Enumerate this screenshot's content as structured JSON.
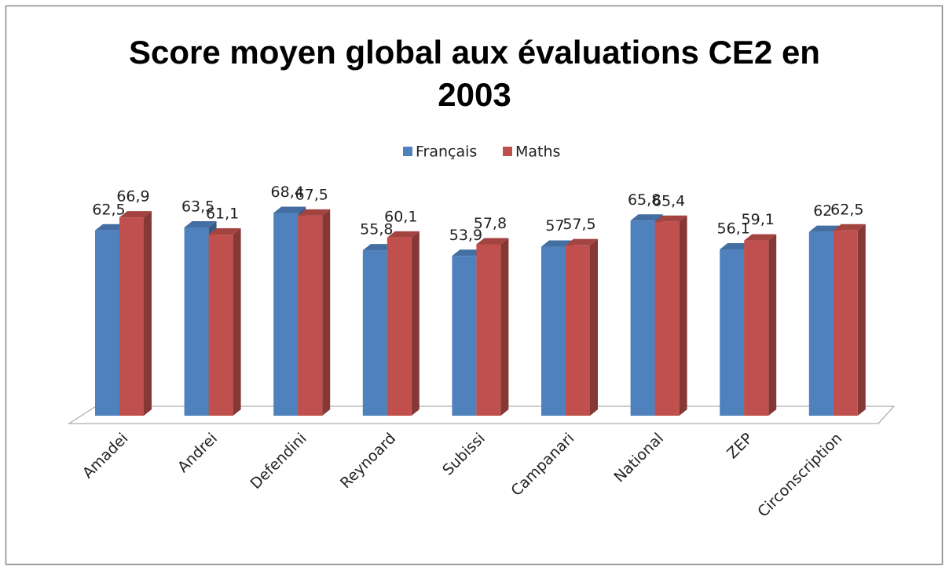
{
  "chart_data": {
    "type": "bar3d",
    "title": "Score moyen global aux évaluations CE2 en 2003",
    "categories": [
      "Amadei",
      "Andrei",
      "Defendini",
      "Reynoard",
      "Subissi",
      "Campanari",
      "National",
      "ZEP",
      "Circonscription"
    ],
    "series": [
      {
        "name": "Français",
        "color": "#4F81BD",
        "values": [
          62.5,
          63.5,
          68.4,
          55.8,
          53.9,
          57,
          65.8,
          56.1,
          62
        ],
        "value_labels": [
          "62,5",
          "63,5",
          "68,4",
          "55,8",
          "53,9",
          "57",
          "65,8",
          "56,1",
          "62"
        ]
      },
      {
        "name": "Maths",
        "color": "#C0504D",
        "values": [
          66.9,
          61.1,
          67.5,
          60.1,
          57.8,
          57.5,
          65.4,
          59.1,
          62.5
        ],
        "value_labels": [
          "66,9",
          "61,1",
          "67,5",
          "60,1",
          "57,8",
          "57,5",
          "65,4",
          "59,1",
          "62,5"
        ]
      }
    ],
    "legend": "top"
  }
}
